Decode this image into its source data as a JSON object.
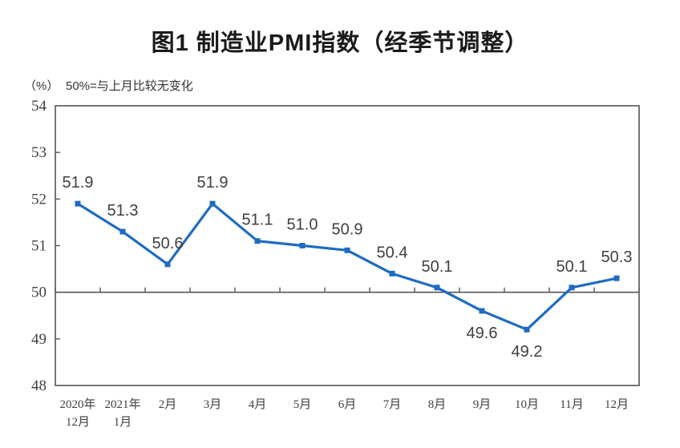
{
  "chart_data": {
    "type": "line",
    "title": "图1 制造业PMI指数（经季节调整）",
    "unit_label": "（%）",
    "note": "50%=与上月比较无变化",
    "categories": [
      [
        "2020年",
        "12月"
      ],
      [
        "2021年",
        "1月"
      ],
      [
        "2月"
      ],
      [
        "3月"
      ],
      [
        "4月"
      ],
      [
        "5月"
      ],
      [
        "6月"
      ],
      [
        "7月"
      ],
      [
        "8月"
      ],
      [
        "9月"
      ],
      [
        "10月"
      ],
      [
        "11月"
      ],
      [
        "12月"
      ]
    ],
    "values": [
      51.9,
      51.3,
      50.6,
      51.9,
      51.1,
      51.0,
      50.9,
      50.4,
      50.1,
      49.6,
      49.2,
      50.1,
      50.3
    ],
    "data_labels": [
      "51.9",
      "51.3",
      "50.6",
      "51.9",
      "51.1",
      "51.0",
      "50.9",
      "50.4",
      "50.1",
      "49.6",
      "49.2",
      "50.1",
      "50.3"
    ],
    "label_side": [
      "above",
      "above",
      "above",
      "above",
      "above",
      "above",
      "above",
      "above",
      "above",
      "below",
      "below",
      "above",
      "above"
    ],
    "ylim": [
      48,
      54
    ],
    "yticks": [
      48,
      49,
      50,
      51,
      52,
      53,
      54
    ],
    "reference_value": 50,
    "grid": "off",
    "legend": "none",
    "marker": "square",
    "line_color": "#1E6BC4",
    "axis_color": "#555555",
    "label_color": "#3F3F3F",
    "tick_label_color": "#404040"
  }
}
